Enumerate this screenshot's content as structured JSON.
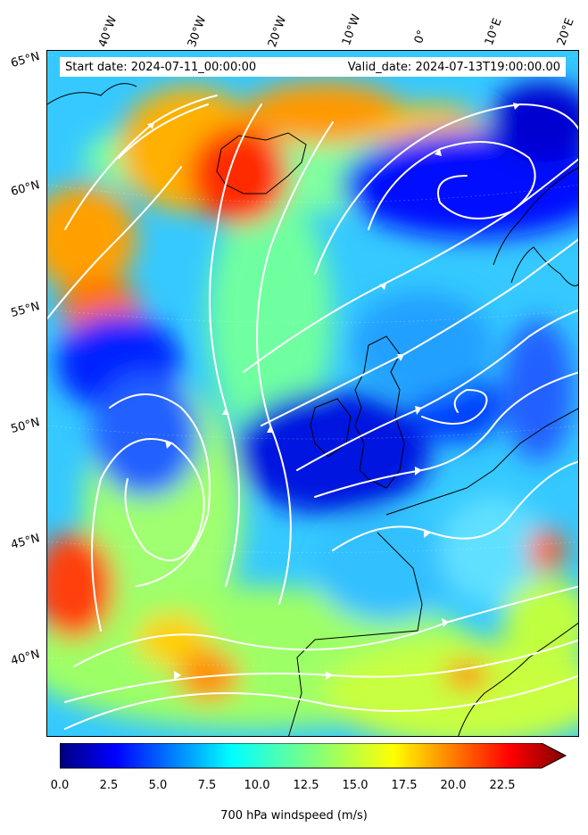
{
  "map": {
    "start_date": "Start date: 2024-07-11_00:00:00",
    "valid_date": "Valid_date: 2024-07-13T19:00:00.00",
    "longitude_labels": [
      "40°W",
      "30°W",
      "20°W",
      "10°W",
      "0°",
      "10°E",
      "20°E"
    ],
    "latitude_labels": [
      "65°N",
      "60°N",
      "55°N",
      "50°N",
      "45°N",
      "40°N"
    ],
    "field": "700 hPa windspeed",
    "region": "North Atlantic and Western Europe"
  },
  "colorbar": {
    "label": "700 hPa windspeed (m/s)",
    "ticks": [
      "0.0",
      "2.5",
      "5.0",
      "7.5",
      "10.0",
      "12.5",
      "15.0",
      "17.5",
      "20.0",
      "22.5"
    ],
    "min": 0,
    "max": 25,
    "extend": "max",
    "colormap": "jet",
    "colors": [
      "#00007f",
      "#0000ff",
      "#007fff",
      "#00ffff",
      "#7fff7f",
      "#ffff00",
      "#ff7f00",
      "#ff0000",
      "#7f0000"
    ]
  }
}
